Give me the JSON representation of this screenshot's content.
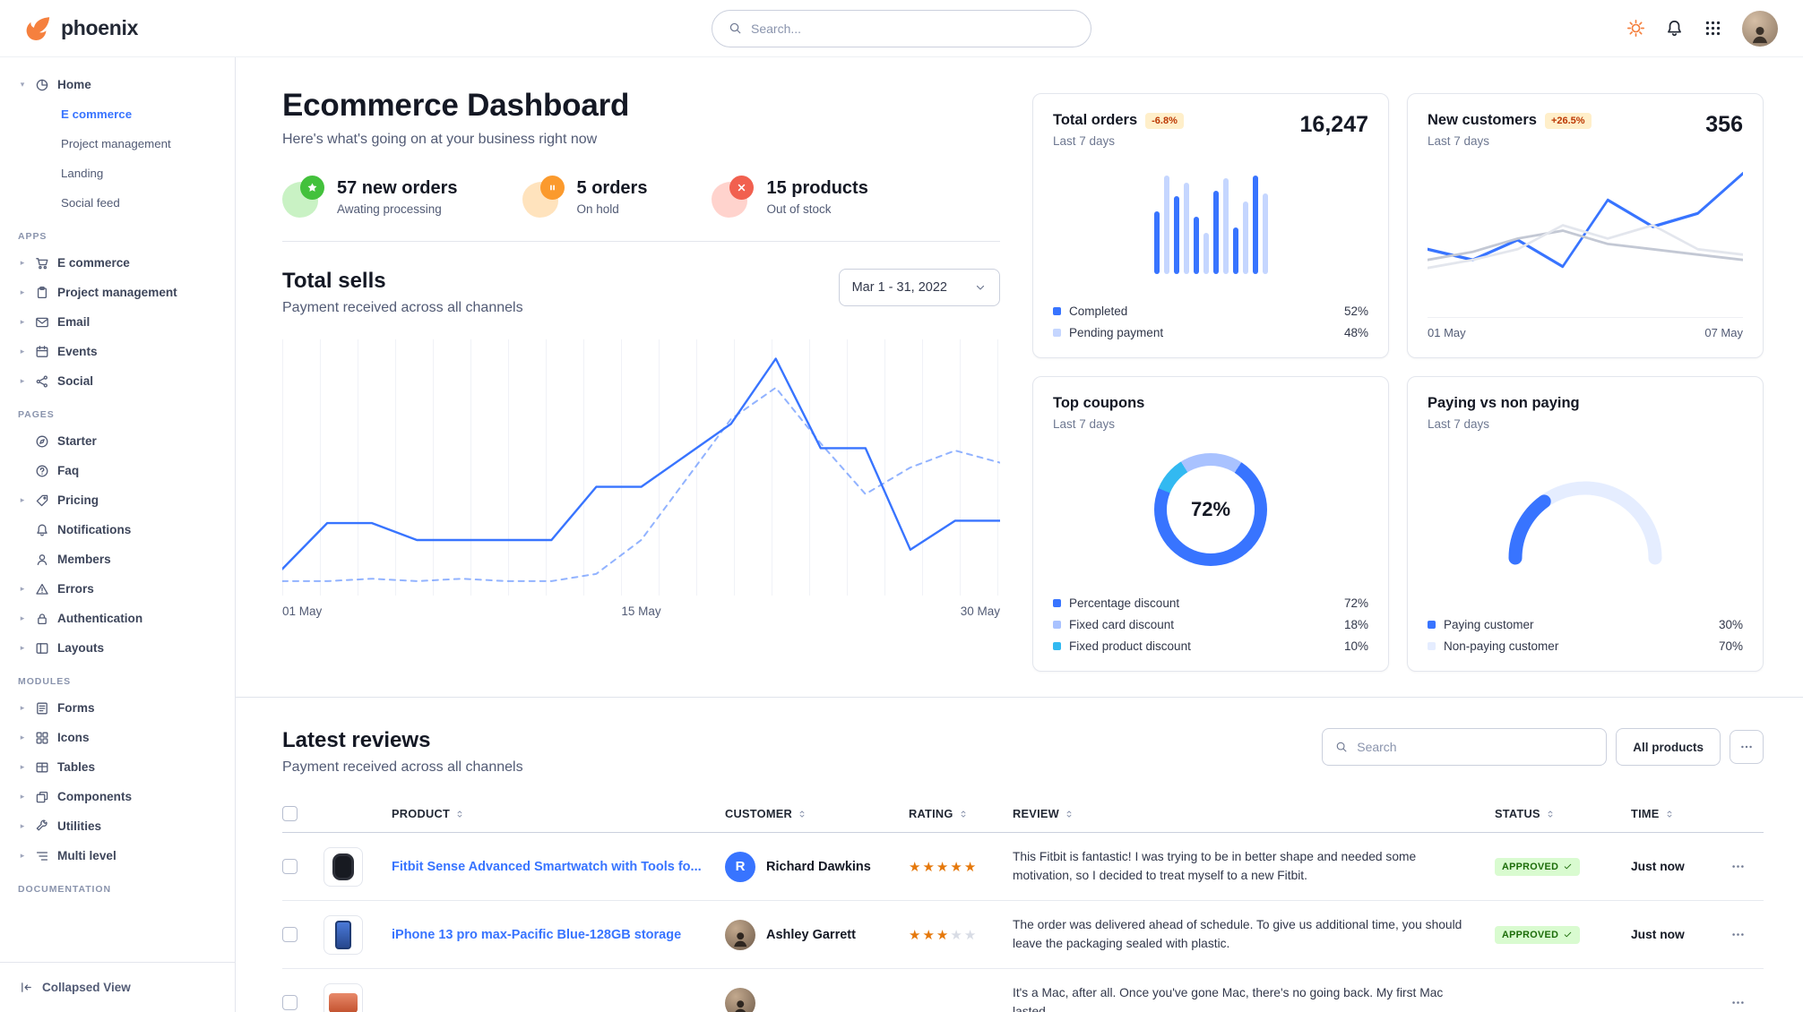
{
  "brand": "phoenix",
  "navbar": {
    "search_placeholder": "Search..."
  },
  "sidebar": {
    "home": {
      "label": "Home",
      "icon": "pie"
    },
    "home_children": [
      {
        "label": "E commerce",
        "active": true
      },
      {
        "label": "Project management",
        "active": false
      },
      {
        "label": "Landing",
        "active": false
      },
      {
        "label": "Social feed",
        "active": false
      }
    ],
    "sections": [
      {
        "title": "APPS",
        "items": [
          {
            "label": "E commerce",
            "icon": "cart",
            "caret": true
          },
          {
            "label": "Project management",
            "icon": "clipboard",
            "caret": true
          },
          {
            "label": "Email",
            "icon": "mail",
            "caret": true
          },
          {
            "label": "Events",
            "icon": "calendar",
            "caret": true
          },
          {
            "label": "Social",
            "icon": "share",
            "caret": true
          }
        ]
      },
      {
        "title": "PAGES",
        "items": [
          {
            "label": "Starter",
            "icon": "compass",
            "caret": false
          },
          {
            "label": "Faq",
            "icon": "question",
            "caret": false
          },
          {
            "label": "Pricing",
            "icon": "tag",
            "caret": true
          },
          {
            "label": "Notifications",
            "icon": "bell",
            "caret": false
          },
          {
            "label": "Members",
            "icon": "users",
            "caret": false
          },
          {
            "label": "Errors",
            "icon": "warning",
            "caret": true
          },
          {
            "label": "Authentication",
            "icon": "lock",
            "caret": true
          },
          {
            "label": "Layouts",
            "icon": "layout",
            "caret": true
          }
        ]
      },
      {
        "title": "MODULES",
        "items": [
          {
            "label": "Forms",
            "icon": "form",
            "caret": true
          },
          {
            "label": "Icons",
            "icon": "icons",
            "caret": true
          },
          {
            "label": "Tables",
            "icon": "table",
            "caret": true
          },
          {
            "label": "Components",
            "icon": "puzzle",
            "caret": true
          },
          {
            "label": "Utilities",
            "icon": "wrench",
            "caret": true
          },
          {
            "label": "Multi level",
            "icon": "list",
            "caret": true
          }
        ]
      },
      {
        "title": "DOCUMENTATION",
        "items": []
      }
    ],
    "footer_label": "Collapsed View"
  },
  "header": {
    "title": "Ecommerce Dashboard",
    "subtitle": "Here's what's going on at your business right now"
  },
  "stats": [
    {
      "value": "57 new orders",
      "caption": "Awating processing",
      "icon": "star",
      "bg": "#c9f2c4",
      "dot": "#43c13c"
    },
    {
      "value": "5 orders",
      "caption": "On hold",
      "icon": "pause",
      "bg": "#ffe3bd",
      "dot": "#fb9a2d"
    },
    {
      "value": "15 products",
      "caption": "Out of stock",
      "icon": "cross",
      "bg": "#ffd3cd",
      "dot": "#f1604f"
    }
  ],
  "total_sells": {
    "title": "Total sells",
    "subtitle": "Payment received across all channels",
    "range": "Mar 1 - 31, 2022",
    "x_labels": [
      "01 May",
      "15 May",
      "30 May"
    ],
    "chart": {
      "type": "line",
      "ymax": 100,
      "series": [
        {
          "name": "current",
          "style": "solid",
          "color": "#3874ff",
          "width": 2.4,
          "values": [
            8,
            27,
            27,
            20,
            20,
            20,
            20,
            42,
            42,
            55,
            68,
            95,
            58,
            58,
            16,
            28,
            28
          ]
        },
        {
          "name": "previous",
          "style": "dashed",
          "color": "#3874ff",
          "width": 2,
          "opacity": 0.55,
          "values": [
            3,
            3,
            4,
            3,
            4,
            3,
            3,
            6,
            20,
            45,
            70,
            83,
            60,
            39,
            50,
            57,
            52
          ]
        }
      ]
    }
  },
  "cards": {
    "total_orders": {
      "title": "Total orders",
      "badge": "-6.8%",
      "period": "Last 7 days",
      "value": "16,247",
      "chart": {
        "type": "bar",
        "color": "#3874ff",
        "alt_color": "#c5d6ff",
        "values": [
          60,
          95,
          75,
          88,
          55,
          40,
          80,
          92,
          45,
          70,
          95,
          78
        ]
      },
      "legend": [
        {
          "label": "Completed",
          "display": "52%",
          "color": "#3874ff"
        },
        {
          "label": "Pending payment",
          "display": "48%",
          "color": "#c5d6ff"
        }
      ]
    },
    "new_customers": {
      "title": "New customers",
      "badge": "+26.5%",
      "period": "Last 7 days",
      "value": "356",
      "x_labels": [
        "01 May",
        "07 May"
      ],
      "chart": {
        "type": "line",
        "ymax": 100,
        "series": [
          {
            "name": "current",
            "style": "solid",
            "color": "#3874ff",
            "width": 2.4,
            "values": [
              38,
              30,
              45,
              25,
              75,
              55,
              65,
              95
            ]
          },
          {
            "name": "previous",
            "style": "solid",
            "color": "#c3c8d4",
            "width": 2,
            "values": [
              30,
              36,
              46,
              52,
              42,
              38,
              34,
              30
            ]
          },
          {
            "name": "baseline",
            "style": "solid",
            "color": "#e3e6ed",
            "width": 2,
            "values": [
              24,
              30,
              38,
              56,
              46,
              56,
              38,
              34
            ]
          }
        ]
      }
    },
    "top_coupons": {
      "title": "Top coupons",
      "period": "Last 7 days",
      "center_value": "72%",
      "segments": [
        {
          "label": "Percentage discount",
          "value": 72,
          "display": "72%",
          "color": "#3874ff"
        },
        {
          "label": "Fixed card discount",
          "value": 18,
          "display": "18%",
          "color": "#a9c2ff"
        },
        {
          "label": "Fixed product discount",
          "value": 10,
          "display": "10%",
          "color": "#32b9f1"
        }
      ]
    },
    "paying": {
      "title": "Paying vs non paying",
      "period": "Last 7 days",
      "segments": [
        {
          "label": "Paying customer",
          "value": 30,
          "display": "30%",
          "color": "#3874ff"
        },
        {
          "label": "Non-paying customer",
          "value": 70,
          "display": "70%",
          "color": "#e5edff"
        }
      ]
    }
  },
  "reviews": {
    "title": "Latest reviews",
    "subtitle": "Payment received across all channels",
    "search_placeholder": "Search",
    "filter_button": "All products",
    "columns": [
      "PRODUCT",
      "CUSTOMER",
      "RATING",
      "REVIEW",
      "STATUS",
      "TIME"
    ],
    "rows": [
      {
        "product": "Fitbit Sense Advanced Smartwatch with Tools fo...",
        "thumb": "watch",
        "customer": "Richard Dawkins",
        "avatar": {
          "type": "initial",
          "text": "R"
        },
        "rating": 5,
        "review": "This Fitbit is fantastic! I was trying to be in better shape and needed some motivation, so I decided to treat myself to a new Fitbit.",
        "status": "APPROVED",
        "time": "Just now"
      },
      {
        "product": "iPhone 13 pro max-Pacific Blue-128GB storage",
        "thumb": "phone",
        "customer": "Ashley Garrett",
        "avatar": {
          "type": "photo"
        },
        "rating": 3,
        "review": "The order was delivered ahead of schedule. To give us additional time, you should leave the packaging sealed with plastic.",
        "status": "APPROVED",
        "time": "Just now"
      },
      {
        "product": "",
        "thumb": "laptop",
        "customer": "",
        "avatar": {
          "type": "photo"
        },
        "rating": null,
        "review": "It's a Mac, after all. Once you've gone Mac, there's no going back. My first Mac lasted...",
        "status": "",
        "time": ""
      }
    ]
  }
}
